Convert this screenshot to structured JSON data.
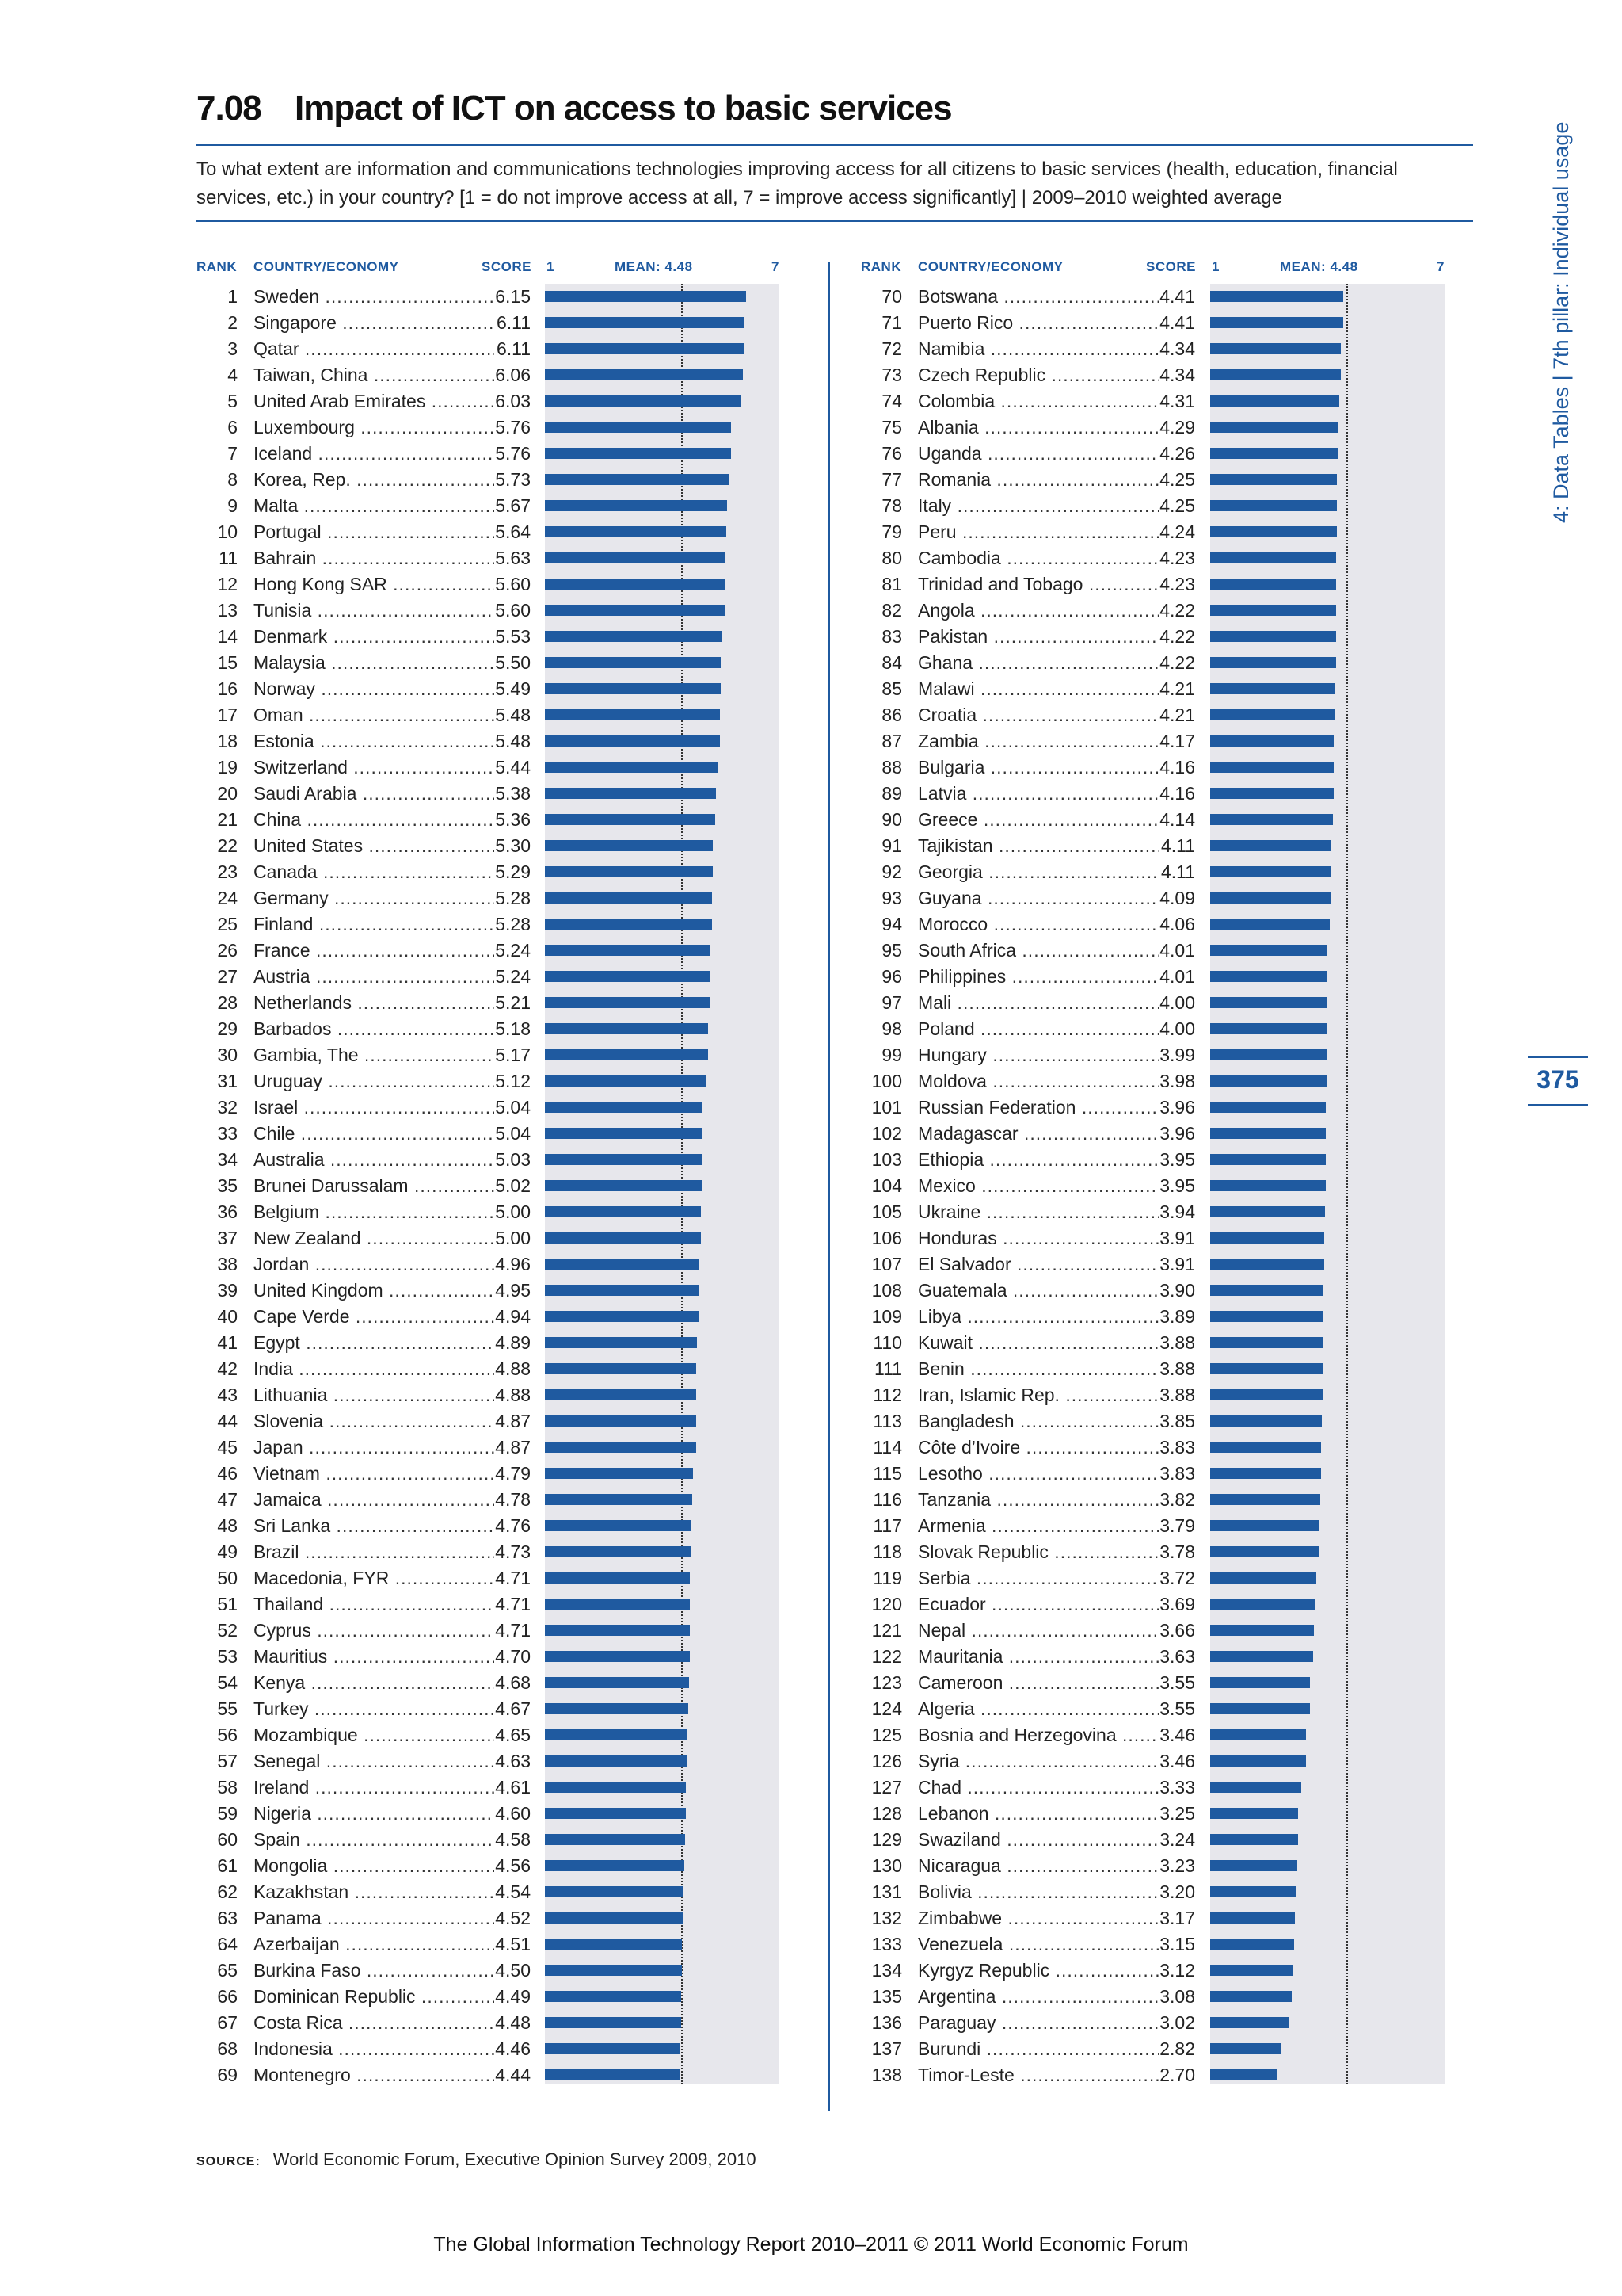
{
  "title": {
    "number": "7.08",
    "text": "Impact of ICT on access to basic services"
  },
  "question": "To what extent are information and communications technologies improving access for all citizens to basic services (health, education, financial services, etc.) in your country? [1 = do not improve access at all, 7 = improve access significantly]  |  2009–2010 weighted average",
  "headers": {
    "rank": "RANK",
    "country": "COUNTRY/ECONOMY",
    "score": "SCORE",
    "min": "1",
    "mean": "MEAN: 4.48",
    "max": "7"
  },
  "chart_data": {
    "type": "bar",
    "scale_min": 1,
    "scale_max": 7,
    "mean": 4.48,
    "left_column": [
      {
        "rank": "1",
        "country": "Sweden",
        "score": 6.15
      },
      {
        "rank": "2",
        "country": "Singapore",
        "score": 6.11
      },
      {
        "rank": "3",
        "country": "Qatar",
        "score": 6.11
      },
      {
        "rank": "4",
        "country": "Taiwan, China",
        "score": 6.06
      },
      {
        "rank": "5",
        "country": "United Arab Emirates",
        "score": 6.03
      },
      {
        "rank": "6",
        "country": "Luxembourg",
        "score": 5.76
      },
      {
        "rank": "7",
        "country": "Iceland",
        "score": 5.76
      },
      {
        "rank": "8",
        "country": "Korea, Rep.",
        "score": 5.73
      },
      {
        "rank": "9",
        "country": "Malta",
        "score": 5.67
      },
      {
        "rank": "10",
        "country": "Portugal",
        "score": 5.64
      },
      {
        "rank": "11",
        "country": "Bahrain",
        "score": 5.63
      },
      {
        "rank": "12",
        "country": "Hong Kong SAR",
        "score": 5.6
      },
      {
        "rank": "13",
        "country": "Tunisia",
        "score": 5.6
      },
      {
        "rank": "14",
        "country": "Denmark",
        "score": 5.53
      },
      {
        "rank": "15",
        "country": "Malaysia",
        "score": 5.5
      },
      {
        "rank": "16",
        "country": "Norway",
        "score": 5.49
      },
      {
        "rank": "17",
        "country": "Oman",
        "score": 5.48
      },
      {
        "rank": "18",
        "country": "Estonia",
        "score": 5.48
      },
      {
        "rank": "19",
        "country": "Switzerland",
        "score": 5.44
      },
      {
        "rank": "20",
        "country": "Saudi Arabia",
        "score": 5.38
      },
      {
        "rank": "21",
        "country": "China",
        "score": 5.36
      },
      {
        "rank": "22",
        "country": "United States",
        "score": 5.3
      },
      {
        "rank": "23",
        "country": "Canada",
        "score": 5.29
      },
      {
        "rank": "24",
        "country": "Germany",
        "score": 5.28
      },
      {
        "rank": "25",
        "country": "Finland",
        "score": 5.28
      },
      {
        "rank": "26",
        "country": "France",
        "score": 5.24
      },
      {
        "rank": "27",
        "country": "Austria",
        "score": 5.24
      },
      {
        "rank": "28",
        "country": "Netherlands",
        "score": 5.21
      },
      {
        "rank": "29",
        "country": "Barbados",
        "score": 5.18
      },
      {
        "rank": "30",
        "country": "Gambia, The",
        "score": 5.17
      },
      {
        "rank": "31",
        "country": "Uruguay",
        "score": 5.12
      },
      {
        "rank": "32",
        "country": "Israel",
        "score": 5.04
      },
      {
        "rank": "33",
        "country": "Chile",
        "score": 5.04
      },
      {
        "rank": "34",
        "country": "Australia",
        "score": 5.03
      },
      {
        "rank": "35",
        "country": "Brunei Darussalam",
        "score": 5.02
      },
      {
        "rank": "36",
        "country": "Belgium",
        "score": 5.0
      },
      {
        "rank": "37",
        "country": "New Zealand",
        "score": 5.0
      },
      {
        "rank": "38",
        "country": "Jordan",
        "score": 4.96
      },
      {
        "rank": "39",
        "country": "United Kingdom",
        "score": 4.95
      },
      {
        "rank": "40",
        "country": "Cape Verde",
        "score": 4.94
      },
      {
        "rank": "41",
        "country": "Egypt",
        "score": 4.89
      },
      {
        "rank": "42",
        "country": "India",
        "score": 4.88
      },
      {
        "rank": "43",
        "country": "Lithuania",
        "score": 4.88
      },
      {
        "rank": "44",
        "country": "Slovenia",
        "score": 4.87
      },
      {
        "rank": "45",
        "country": "Japan",
        "score": 4.87
      },
      {
        "rank": "46",
        "country": "Vietnam",
        "score": 4.79
      },
      {
        "rank": "47",
        "country": "Jamaica",
        "score": 4.78
      },
      {
        "rank": "48",
        "country": "Sri Lanka",
        "score": 4.76
      },
      {
        "rank": "49",
        "country": "Brazil",
        "score": 4.73
      },
      {
        "rank": "50",
        "country": "Macedonia, FYR",
        "score": 4.71
      },
      {
        "rank": "51",
        "country": "Thailand",
        "score": 4.71
      },
      {
        "rank": "52",
        "country": "Cyprus",
        "score": 4.71
      },
      {
        "rank": "53",
        "country": "Mauritius",
        "score": 4.7
      },
      {
        "rank": "54",
        "country": "Kenya",
        "score": 4.68
      },
      {
        "rank": "55",
        "country": "Turkey",
        "score": 4.67
      },
      {
        "rank": "56",
        "country": "Mozambique",
        "score": 4.65
      },
      {
        "rank": "57",
        "country": "Senegal",
        "score": 4.63
      },
      {
        "rank": "58",
        "country": "Ireland",
        "score": 4.61
      },
      {
        "rank": "59",
        "country": "Nigeria",
        "score": 4.6
      },
      {
        "rank": "60",
        "country": "Spain",
        "score": 4.58
      },
      {
        "rank": "61",
        "country": "Mongolia",
        "score": 4.56
      },
      {
        "rank": "62",
        "country": "Kazakhstan",
        "score": 4.54
      },
      {
        "rank": "63",
        "country": "Panama",
        "score": 4.52
      },
      {
        "rank": "64",
        "country": "Azerbaijan",
        "score": 4.51
      },
      {
        "rank": "65",
        "country": "Burkina Faso",
        "score": 4.5
      },
      {
        "rank": "66",
        "country": "Dominican Republic",
        "score": 4.49
      },
      {
        "rank": "67",
        "country": "Costa Rica",
        "score": 4.48
      },
      {
        "rank": "68",
        "country": "Indonesia",
        "score": 4.46
      },
      {
        "rank": "69",
        "country": "Montenegro",
        "score": 4.44
      }
    ],
    "right_column": [
      {
        "rank": "70",
        "country": "Botswana",
        "score": 4.41
      },
      {
        "rank": "71",
        "country": "Puerto Rico",
        "score": 4.41
      },
      {
        "rank": "72",
        "country": "Namibia",
        "score": 4.34
      },
      {
        "rank": "73",
        "country": "Czech Republic",
        "score": 4.34
      },
      {
        "rank": "74",
        "country": "Colombia",
        "score": 4.31
      },
      {
        "rank": "75",
        "country": "Albania",
        "score": 4.29
      },
      {
        "rank": "76",
        "country": "Uganda",
        "score": 4.26
      },
      {
        "rank": "77",
        "country": "Romania",
        "score": 4.25
      },
      {
        "rank": "78",
        "country": "Italy",
        "score": 4.25
      },
      {
        "rank": "79",
        "country": "Peru",
        "score": 4.24
      },
      {
        "rank": "80",
        "country": "Cambodia",
        "score": 4.23
      },
      {
        "rank": "81",
        "country": "Trinidad and Tobago",
        "score": 4.23
      },
      {
        "rank": "82",
        "country": "Angola",
        "score": 4.22
      },
      {
        "rank": "83",
        "country": "Pakistan",
        "score": 4.22
      },
      {
        "rank": "84",
        "country": "Ghana",
        "score": 4.22
      },
      {
        "rank": "85",
        "country": "Malawi",
        "score": 4.21
      },
      {
        "rank": "86",
        "country": "Croatia",
        "score": 4.21
      },
      {
        "rank": "87",
        "country": "Zambia",
        "score": 4.17
      },
      {
        "rank": "88",
        "country": "Bulgaria",
        "score": 4.16
      },
      {
        "rank": "89",
        "country": "Latvia",
        "score": 4.16
      },
      {
        "rank": "90",
        "country": "Greece",
        "score": 4.14
      },
      {
        "rank": "91",
        "country": "Tajikistan",
        "score": 4.11
      },
      {
        "rank": "92",
        "country": "Georgia",
        "score": 4.11
      },
      {
        "rank": "93",
        "country": "Guyana",
        "score": 4.09
      },
      {
        "rank": "94",
        "country": "Morocco",
        "score": 4.06
      },
      {
        "rank": "95",
        "country": "South Africa",
        "score": 4.01
      },
      {
        "rank": "96",
        "country": "Philippines",
        "score": 4.01
      },
      {
        "rank": "97",
        "country": "Mali",
        "score": 4.0
      },
      {
        "rank": "98",
        "country": "Poland",
        "score": 4.0
      },
      {
        "rank": "99",
        "country": "Hungary",
        "score": 3.99
      },
      {
        "rank": "100",
        "country": "Moldova",
        "score": 3.98
      },
      {
        "rank": "101",
        "country": "Russian Federation",
        "score": 3.96
      },
      {
        "rank": "102",
        "country": "Madagascar",
        "score": 3.96
      },
      {
        "rank": "103",
        "country": "Ethiopia",
        "score": 3.95
      },
      {
        "rank": "104",
        "country": "Mexico",
        "score": 3.95
      },
      {
        "rank": "105",
        "country": "Ukraine",
        "score": 3.94
      },
      {
        "rank": "106",
        "country": "Honduras",
        "score": 3.91
      },
      {
        "rank": "107",
        "country": "El Salvador",
        "score": 3.91
      },
      {
        "rank": "108",
        "country": "Guatemala",
        "score": 3.9
      },
      {
        "rank": "109",
        "country": "Libya",
        "score": 3.89
      },
      {
        "rank": "110",
        "country": "Kuwait",
        "score": 3.88
      },
      {
        "rank": "111",
        "country": "Benin",
        "score": 3.88
      },
      {
        "rank": "112",
        "country": "Iran, Islamic Rep.",
        "score": 3.88
      },
      {
        "rank": "113",
        "country": "Bangladesh",
        "score": 3.85
      },
      {
        "rank": "114",
        "country": "Côte d’Ivoire",
        "score": 3.83
      },
      {
        "rank": "115",
        "country": "Lesotho",
        "score": 3.83
      },
      {
        "rank": "116",
        "country": "Tanzania",
        "score": 3.82
      },
      {
        "rank": "117",
        "country": "Armenia",
        "score": 3.79
      },
      {
        "rank": "118",
        "country": "Slovak Republic",
        "score": 3.78
      },
      {
        "rank": "119",
        "country": "Serbia",
        "score": 3.72
      },
      {
        "rank": "120",
        "country": "Ecuador",
        "score": 3.69
      },
      {
        "rank": "121",
        "country": "Nepal",
        "score": 3.66
      },
      {
        "rank": "122",
        "country": "Mauritania",
        "score": 3.63
      },
      {
        "rank": "123",
        "country": "Cameroon",
        "score": 3.55
      },
      {
        "rank": "124",
        "country": "Algeria",
        "score": 3.55
      },
      {
        "rank": "125",
        "country": "Bosnia and Herzegovina",
        "score": 3.46
      },
      {
        "rank": "126",
        "country": "Syria",
        "score": 3.46
      },
      {
        "rank": "127",
        "country": "Chad",
        "score": 3.33
      },
      {
        "rank": "128",
        "country": "Lebanon",
        "score": 3.25
      },
      {
        "rank": "129",
        "country": "Swaziland",
        "score": 3.24
      },
      {
        "rank": "130",
        "country": "Nicaragua",
        "score": 3.23
      },
      {
        "rank": "131",
        "country": "Bolivia",
        "score": 3.2
      },
      {
        "rank": "132",
        "country": "Zimbabwe",
        "score": 3.17
      },
      {
        "rank": "133",
        "country": "Venezuela",
        "score": 3.15
      },
      {
        "rank": "134",
        "country": "Kyrgyz Republic",
        "score": 3.12
      },
      {
        "rank": "135",
        "country": "Argentina",
        "score": 3.08
      },
      {
        "rank": "136",
        "country": "Paraguay",
        "score": 3.02
      },
      {
        "rank": "137",
        "country": "Burundi",
        "score": 2.82
      },
      {
        "rank": "138",
        "country": "Timor-Leste",
        "score": 2.7
      }
    ]
  },
  "sidebar": "4: Data Tables  |  7th pillar: Individual usage",
  "page_number": "375",
  "source": {
    "label": "SOURCE:",
    "text": "World Economic Forum, Executive Opinion Survey 2009, 2010"
  },
  "footer": "The Global Information Technology Report 2010–2011 © 2011 World Economic Forum"
}
